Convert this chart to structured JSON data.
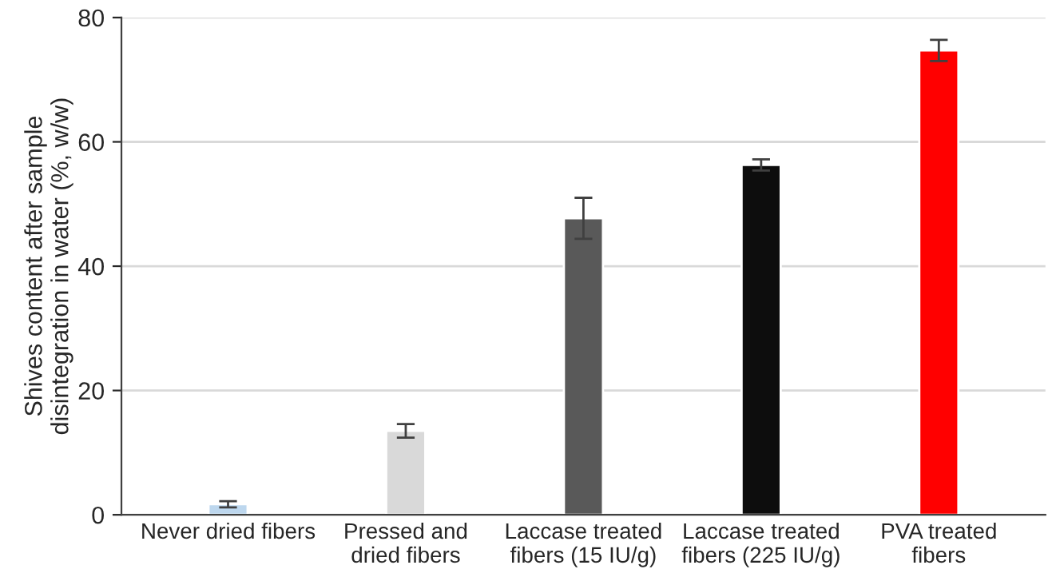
{
  "chart_data": {
    "type": "bar",
    "ylabel": "Shives content after sample\ndisintegration in water (%, w/w)",
    "categories": [
      "Never dried fibers",
      "Pressed and\ndried fibers",
      "Laccase treated\nfibers (15 IU/g)",
      "Laccase treated\nfibers (225 IU/g)",
      "PVA treated\nfibers"
    ],
    "values": [
      1.7,
      13.5,
      47.7,
      56.3,
      74.7
    ],
    "errors": [
      0.5,
      1.1,
      3.3,
      0.9,
      1.7
    ],
    "colors": [
      "#bdd7ee",
      "#d9d9d9",
      "#595959",
      "#0d0d0d",
      "#ff0000"
    ],
    "ylim": [
      0,
      80
    ],
    "yticks": [
      0,
      20,
      40,
      60,
      80
    ],
    "grid": "y"
  }
}
